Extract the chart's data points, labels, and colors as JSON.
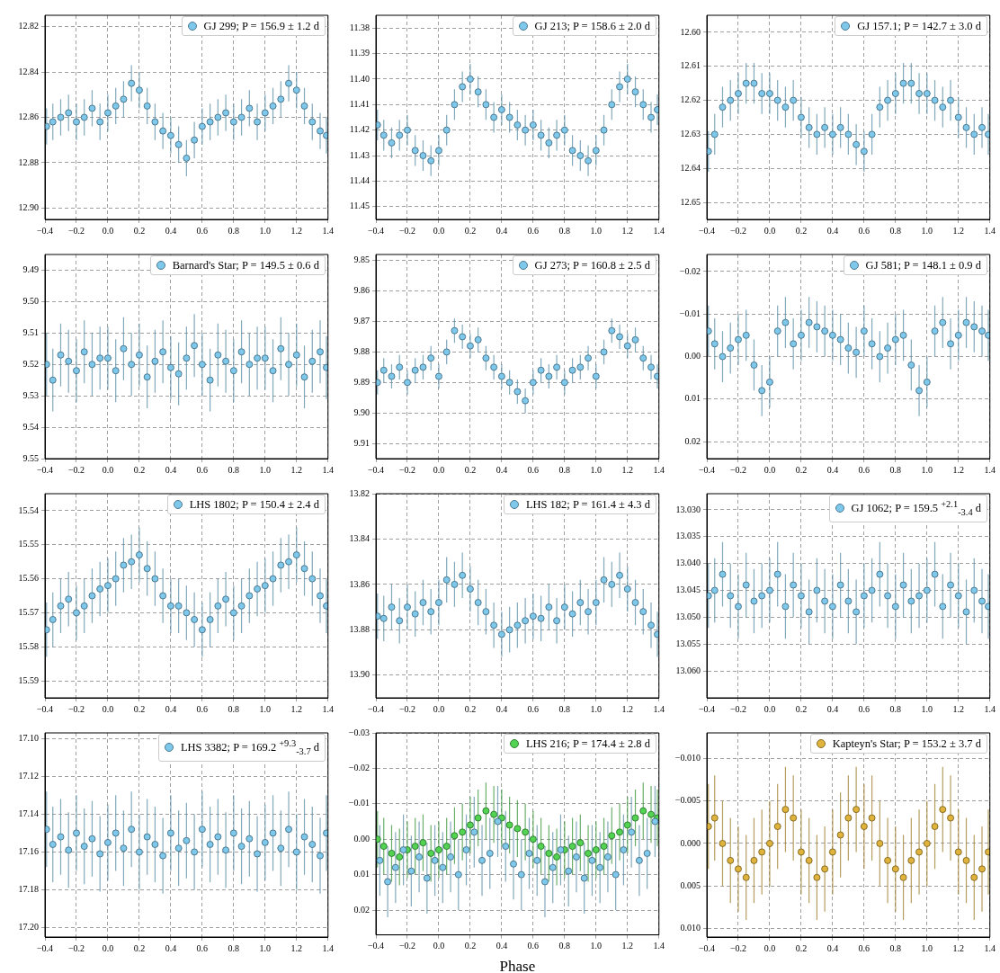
{
  "chart_data": [
    {
      "type": "scatter",
      "x": [
        -0.39,
        -0.35,
        -0.3,
        -0.25,
        -0.2,
        -0.15,
        -0.1,
        -0.05,
        0,
        0.05,
        0.1,
        0.15,
        0.2,
        0.25,
        0.3,
        0.35,
        0.4,
        0.45,
        0.5,
        0.55,
        0.6,
        0.65,
        0.7,
        0.75,
        0.8,
        0.85,
        0.9,
        0.95,
        1,
        1.05,
        1.1,
        1.15,
        1.2,
        1.25,
        1.3,
        1.35,
        1.39
      ],
      "xlim": [
        -0.4,
        1.4
      ],
      "xticks": [
        {
          "value": -0.4,
          "label": "−0.4"
        },
        {
          "value": -0.2,
          "label": "−0.2"
        },
        {
          "value": 0,
          "label": "0.0"
        },
        0.2,
        0.4,
        0.6,
        0.8,
        {
          "value": 1,
          "label": "1.0"
        },
        1.2,
        1.4
      ],
      "ylim": [
        12.905,
        12.815
      ],
      "yticks": [
        12.82,
        12.84,
        12.86,
        12.88,
        {
          "value": 12.9,
          "label": "12.90"
        }
      ],
      "grid": true,
      "legend": "top right",
      "marker": "circle",
      "series": [
        {
          "name": "GJ 299; P = 156.9 ± 1.2 d",
          "color": "#7ec8ec",
          "values": [
            12.864,
            12.862,
            12.86,
            12.858,
            12.862,
            12.86,
            12.856,
            12.862,
            12.858,
            12.855,
            12.852,
            12.845,
            12.848,
            12.855,
            12.862,
            12.866,
            12.868,
            12.872,
            12.878,
            12.87,
            12.864,
            12.862,
            12.86,
            12.858,
            12.862,
            12.86,
            12.856,
            12.862,
            12.858,
            12.855,
            12.852,
            12.845,
            12.848,
            12.855,
            12.862,
            12.866,
            12.868
          ],
          "errors": [
            0.008,
            0.008,
            0.008,
            0.008,
            0.008,
            0.008,
            0.008,
            0.008,
            0.008,
            0.008,
            0.008,
            0.008,
            0.008,
            0.008,
            0.008,
            0.008,
            0.008,
            0.008,
            0.008,
            0.008,
            0.008,
            0.008,
            0.008,
            0.008,
            0.008,
            0.008,
            0.008,
            0.008,
            0.008,
            0.008,
            0.008,
            0.008,
            0.008,
            0.008,
            0.008,
            0.008,
            0.008
          ]
        }
      ]
    },
    {
      "type": "scatter",
      "x": [
        -0.39,
        -0.35,
        -0.3,
        -0.25,
        -0.2,
        -0.15,
        -0.1,
        -0.05,
        0,
        0.05,
        0.1,
        0.15,
        0.2,
        0.25,
        0.3,
        0.35,
        0.4,
        0.45,
        0.5,
        0.55,
        0.6,
        0.65,
        0.7,
        0.75,
        0.8,
        0.85,
        0.9,
        0.95,
        1,
        1.05,
        1.1,
        1.15,
        1.2,
        1.25,
        1.3,
        1.35,
        1.39
      ],
      "xlim": [
        -0.4,
        1.4
      ],
      "xticks": [
        {
          "value": -0.4,
          "label": "−0.4"
        },
        {
          "value": -0.2,
          "label": "−0.2"
        },
        {
          "value": 0,
          "label": "0.0"
        },
        0.2,
        0.4,
        0.6,
        0.8,
        {
          "value": 1,
          "label": "1.0"
        },
        1.2,
        1.4
      ],
      "ylim": [
        11.455,
        11.375
      ],
      "yticks": [
        11.38,
        11.39,
        {
          "value": 11.4,
          "label": "11.40"
        },
        11.41,
        11.42,
        11.43,
        11.44,
        11.45
      ],
      "grid": true,
      "legend": "top right",
      "marker": "circle",
      "series": [
        {
          "name": "GJ 213; P = 158.6 ± 2.0 d",
          "color": "#7ec8ec",
          "values": [
            11.418,
            11.422,
            11.425,
            11.422,
            11.42,
            11.428,
            11.43,
            11.432,
            11.428,
            11.42,
            11.41,
            11.403,
            11.4,
            11.405,
            11.41,
            11.415,
            11.412,
            11.415,
            11.418,
            11.42,
            11.418,
            11.422,
            11.425,
            11.422,
            11.42,
            11.428,
            11.43,
            11.432,
            11.428,
            11.42,
            11.41,
            11.403,
            11.4,
            11.405,
            11.41,
            11.415,
            11.412
          ],
          "errors": [
            0.006,
            0.006,
            0.006,
            0.006,
            0.006,
            0.006,
            0.006,
            0.006,
            0.006,
            0.006,
            0.006,
            0.006,
            0.006,
            0.006,
            0.006,
            0.006,
            0.006,
            0.006,
            0.006,
            0.006,
            0.006,
            0.006,
            0.006,
            0.006,
            0.006,
            0.006,
            0.006,
            0.006,
            0.006,
            0.006,
            0.006,
            0.006,
            0.006,
            0.006,
            0.006,
            0.006,
            0.006
          ]
        }
      ]
    },
    {
      "type": "scatter",
      "x": [
        -0.39,
        -0.35,
        -0.3,
        -0.25,
        -0.2,
        -0.15,
        -0.1,
        -0.05,
        0,
        0.05,
        0.1,
        0.15,
        0.2,
        0.25,
        0.3,
        0.35,
        0.4,
        0.45,
        0.5,
        0.55,
        0.6,
        0.65,
        0.7,
        0.75,
        0.8,
        0.85,
        0.9,
        0.95,
        1,
        1.05,
        1.1,
        1.15,
        1.2,
        1.25,
        1.3,
        1.35,
        1.39
      ],
      "xlim": [
        -0.4,
        1.4
      ],
      "xticks": [
        {
          "value": -0.4,
          "label": "−0.4"
        },
        {
          "value": -0.2,
          "label": "−0.2"
        },
        {
          "value": 0,
          "label": "0.0"
        },
        0.2,
        0.4,
        0.6,
        0.8,
        {
          "value": 1,
          "label": "1.0"
        },
        1.2,
        1.4
      ],
      "ylim": [
        12.655,
        12.595
      ],
      "yticks": [
        {
          "value": 12.6,
          "label": "12.60"
        },
        12.61,
        12.62,
        12.63,
        12.64,
        12.65
      ],
      "grid": true,
      "legend": "top right",
      "marker": "circle",
      "series": [
        {
          "name": "GJ 157.1; P = 142.7 ± 3.0 d",
          "color": "#7ec8ec",
          "values": [
            12.635,
            12.63,
            12.622,
            12.62,
            12.618,
            12.615,
            12.615,
            12.618,
            12.618,
            12.62,
            12.622,
            12.62,
            12.625,
            12.628,
            12.63,
            12.628,
            12.63,
            12.628,
            12.63,
            12.633,
            12.635,
            12.63,
            12.622,
            12.62,
            12.618,
            12.615,
            12.615,
            12.618,
            12.618,
            12.62,
            12.622,
            12.62,
            12.625,
            12.628,
            12.63,
            12.628,
            12.63
          ],
          "errors": [
            0.006,
            0.006,
            0.006,
            0.006,
            0.006,
            0.006,
            0.006,
            0.006,
            0.006,
            0.006,
            0.006,
            0.006,
            0.006,
            0.006,
            0.006,
            0.006,
            0.006,
            0.006,
            0.006,
            0.006,
            0.006,
            0.006,
            0.006,
            0.006,
            0.006,
            0.006,
            0.006,
            0.006,
            0.006,
            0.006,
            0.006,
            0.006,
            0.006,
            0.006,
            0.006,
            0.006,
            0.006
          ]
        }
      ]
    },
    {
      "type": "scatter",
      "x": [
        -0.39,
        -0.35,
        -0.3,
        -0.25,
        -0.2,
        -0.15,
        -0.1,
        -0.05,
        0,
        0.05,
        0.1,
        0.15,
        0.2,
        0.25,
        0.3,
        0.35,
        0.4,
        0.45,
        0.5,
        0.55,
        0.6,
        0.65,
        0.7,
        0.75,
        0.8,
        0.85,
        0.9,
        0.95,
        1,
        1.05,
        1.1,
        1.15,
        1.2,
        1.25,
        1.3,
        1.35,
        1.39
      ],
      "xlim": [
        -0.4,
        1.4
      ],
      "xticks": [
        {
          "value": -0.4,
          "label": "−0.4"
        },
        {
          "value": -0.2,
          "label": "−0.2"
        },
        {
          "value": 0,
          "label": "0.0"
        },
        0.2,
        0.4,
        0.6,
        0.8,
        {
          "value": 1,
          "label": "1.0"
        },
        1.2,
        1.4
      ],
      "ylim": [
        9.55,
        9.485
      ],
      "yticks": [
        9.49,
        {
          "value": 9.5,
          "label": "9.50"
        },
        9.51,
        9.52,
        9.53,
        9.54,
        9.55
      ],
      "grid": true,
      "legend": "top right",
      "marker": "circle",
      "series": [
        {
          "name": "Barnard's Star; P = 149.5 ± 0.6 d",
          "color": "#7ec8ec",
          "values": [
            9.52,
            9.525,
            9.517,
            9.519,
            9.522,
            9.516,
            9.52,
            9.518,
            9.518,
            9.522,
            9.515,
            9.52,
            9.517,
            9.524,
            9.519,
            9.516,
            9.521,
            9.523,
            9.518,
            9.514,
            9.52,
            9.525,
            9.517,
            9.519,
            9.522,
            9.516,
            9.52,
            9.518,
            9.518,
            9.522,
            9.515,
            9.52,
            9.517,
            9.524,
            9.519,
            9.516,
            9.521
          ],
          "errors": [
            0.01,
            0.01,
            0.01,
            0.01,
            0.01,
            0.01,
            0.01,
            0.01,
            0.01,
            0.01,
            0.01,
            0.01,
            0.01,
            0.01,
            0.01,
            0.01,
            0.01,
            0.01,
            0.01,
            0.01,
            0.01,
            0.01,
            0.01,
            0.01,
            0.01,
            0.01,
            0.01,
            0.01,
            0.01,
            0.01,
            0.01,
            0.01,
            0.01,
            0.01,
            0.01,
            0.01,
            0.01
          ]
        }
      ]
    },
    {
      "type": "scatter",
      "x": [
        -0.39,
        -0.35,
        -0.3,
        -0.25,
        -0.2,
        -0.15,
        -0.1,
        -0.05,
        0,
        0.05,
        0.1,
        0.15,
        0.2,
        0.25,
        0.3,
        0.35,
        0.4,
        0.45,
        0.5,
        0.55,
        0.6,
        0.65,
        0.7,
        0.75,
        0.8,
        0.85,
        0.9,
        0.95,
        1,
        1.05,
        1.1,
        1.15,
        1.2,
        1.25,
        1.3,
        1.35,
        1.39
      ],
      "xlim": [
        -0.4,
        1.4
      ],
      "xticks": [
        {
          "value": -0.4,
          "label": "−0.4"
        },
        {
          "value": -0.2,
          "label": "−0.2"
        },
        {
          "value": 0,
          "label": "0.0"
        },
        0.2,
        0.4,
        0.6,
        0.8,
        {
          "value": 1,
          "label": "1.0"
        },
        1.2,
        1.4
      ],
      "ylim": [
        9.915,
        9.848
      ],
      "yticks": [
        9.85,
        9.86,
        9.87,
        9.88,
        9.89,
        {
          "value": 9.9,
          "label": "9.90"
        },
        9.91
      ],
      "grid": true,
      "legend": "top right",
      "marker": "circle",
      "series": [
        {
          "name": "GJ 273; P = 160.8 ± 2.5 d",
          "color": "#7ec8ec",
          "values": [
            9.89,
            9.886,
            9.888,
            9.885,
            9.89,
            9.886,
            9.885,
            9.882,
            9.888,
            9.88,
            9.873,
            9.875,
            9.878,
            9.876,
            9.882,
            9.885,
            9.888,
            9.89,
            9.893,
            9.896,
            9.89,
            9.886,
            9.888,
            9.885,
            9.89,
            9.886,
            9.885,
            9.882,
            9.888,
            9.88,
            9.873,
            9.875,
            9.878,
            9.876,
            9.882,
            9.885,
            9.888
          ],
          "errors": [
            0.004,
            0.004,
            0.004,
            0.004,
            0.004,
            0.004,
            0.004,
            0.004,
            0.004,
            0.004,
            0.004,
            0.004,
            0.004,
            0.004,
            0.004,
            0.004,
            0.004,
            0.004,
            0.004,
            0.004,
            0.004,
            0.004,
            0.004,
            0.004,
            0.004,
            0.004,
            0.004,
            0.004,
            0.004,
            0.004,
            0.004,
            0.004,
            0.004,
            0.004,
            0.004,
            0.004,
            0.004
          ]
        }
      ]
    },
    {
      "type": "scatter",
      "x": [
        -0.39,
        -0.35,
        -0.3,
        -0.25,
        -0.2,
        -0.15,
        -0.1,
        -0.05,
        0,
        0.05,
        0.1,
        0.15,
        0.2,
        0.25,
        0.3,
        0.35,
        0.4,
        0.45,
        0.5,
        0.55,
        0.6,
        0.65,
        0.7,
        0.75,
        0.8,
        0.85,
        0.9,
        0.95,
        1,
        1.05,
        1.1,
        1.15,
        1.2,
        1.25,
        1.3,
        1.35,
        1.39
      ],
      "xlim": [
        -0.4,
        1.4
      ],
      "xticks": [
        {
          "value": -0.4,
          "label": "−0.4"
        },
        {
          "value": -0.2,
          "label": "−0.2"
        },
        {
          "value": 0,
          "label": "0.0"
        },
        0.2,
        0.4,
        0.6,
        0.8,
        {
          "value": 1,
          "label": "1.0"
        },
        1.2,
        1.4
      ],
      "ylim": [
        0.024,
        -0.024
      ],
      "yticks": [
        {
          "value": -0.02,
          "label": "−0.02"
        },
        {
          "value": -0.01,
          "label": "−0.01"
        },
        {
          "value": 0,
          "label": "0.00"
        },
        0.01,
        0.02
      ],
      "grid": true,
      "legend": "top right",
      "marker": "circle",
      "series": [
        {
          "name": "GJ 581; P = 148.1 ± 0.9 d",
          "color": "#7ec8ec",
          "values": [
            -0.006,
            -0.003,
            0.0,
            -0.002,
            -0.004,
            -0.005,
            0.002,
            0.008,
            0.006,
            -0.006,
            -0.008,
            -0.003,
            -0.005,
            -0.008,
            -0.007,
            -0.006,
            -0.005,
            -0.004,
            -0.002,
            -0.001,
            -0.006,
            -0.003,
            0.0,
            -0.002,
            -0.004,
            -0.005,
            0.002,
            0.008,
            0.006,
            -0.006,
            -0.008,
            -0.003,
            -0.005,
            -0.008,
            -0.007,
            -0.006,
            -0.005
          ],
          "errors": [
            0.006,
            0.006,
            0.006,
            0.006,
            0.006,
            0.006,
            0.006,
            0.006,
            0.006,
            0.006,
            0.006,
            0.006,
            0.006,
            0.006,
            0.006,
            0.006,
            0.006,
            0.006,
            0.006,
            0.006,
            0.006,
            0.006,
            0.006,
            0.006,
            0.006,
            0.006,
            0.006,
            0.006,
            0.006,
            0.006,
            0.006,
            0.006,
            0.006,
            0.006,
            0.006,
            0.006,
            0.006
          ]
        }
      ]
    },
    {
      "type": "scatter",
      "x": [
        -0.39,
        -0.35,
        -0.3,
        -0.25,
        -0.2,
        -0.15,
        -0.1,
        -0.05,
        0,
        0.05,
        0.1,
        0.15,
        0.2,
        0.25,
        0.3,
        0.35,
        0.4,
        0.45,
        0.5,
        0.55,
        0.6,
        0.65,
        0.7,
        0.75,
        0.8,
        0.85,
        0.9,
        0.95,
        1,
        1.05,
        1.1,
        1.15,
        1.2,
        1.25,
        1.3,
        1.35,
        1.39
      ],
      "xlim": [
        -0.4,
        1.4
      ],
      "xticks": [
        {
          "value": -0.4,
          "label": "−0.4"
        },
        {
          "value": -0.2,
          "label": "−0.2"
        },
        {
          "value": 0,
          "label": "0.0"
        },
        0.2,
        0.4,
        0.6,
        0.8,
        {
          "value": 1,
          "label": "1.0"
        },
        1.2,
        1.4
      ],
      "ylim": [
        15.595,
        15.535
      ],
      "yticks": [
        15.54,
        15.55,
        15.56,
        15.57,
        15.58,
        15.59
      ],
      "grid": true,
      "legend": "top right",
      "marker": "circle",
      "series": [
        {
          "name": "LHS 1802; P = 150.4 ± 2.4 d",
          "color": "#7ec8ec",
          "values": [
            15.575,
            15.572,
            15.568,
            15.566,
            15.57,
            15.568,
            15.565,
            15.563,
            15.562,
            15.56,
            15.556,
            15.555,
            15.553,
            15.557,
            15.56,
            15.565,
            15.568,
            15.568,
            15.57,
            15.572,
            15.575,
            15.572,
            15.568,
            15.566,
            15.57,
            15.568,
            15.565,
            15.563,
            15.562,
            15.56,
            15.556,
            15.555,
            15.553,
            15.557,
            15.56,
            15.565,
            15.568
          ],
          "errors": [
            0.008,
            0.008,
            0.008,
            0.008,
            0.008,
            0.008,
            0.008,
            0.008,
            0.008,
            0.008,
            0.008,
            0.008,
            0.008,
            0.008,
            0.008,
            0.008,
            0.008,
            0.008,
            0.008,
            0.008,
            0.008,
            0.008,
            0.008,
            0.008,
            0.008,
            0.008,
            0.008,
            0.008,
            0.008,
            0.008,
            0.008,
            0.008,
            0.008,
            0.008,
            0.008,
            0.008,
            0.008
          ]
        }
      ]
    },
    {
      "type": "scatter",
      "x": [
        -0.39,
        -0.35,
        -0.3,
        -0.25,
        -0.2,
        -0.15,
        -0.1,
        -0.05,
        0,
        0.05,
        0.1,
        0.15,
        0.2,
        0.25,
        0.3,
        0.35,
        0.4,
        0.45,
        0.5,
        0.55,
        0.6,
        0.65,
        0.7,
        0.75,
        0.8,
        0.85,
        0.9,
        0.95,
        1,
        1.05,
        1.1,
        1.15,
        1.2,
        1.25,
        1.3,
        1.35,
        1.39
      ],
      "xlim": [
        -0.4,
        1.4
      ],
      "xticks": [
        {
          "value": -0.4,
          "label": "−0.4"
        },
        {
          "value": -0.2,
          "label": "−0.2"
        },
        {
          "value": 0,
          "label": "0.0"
        },
        0.2,
        0.4,
        0.6,
        0.8,
        {
          "value": 1,
          "label": "1.0"
        },
        1.2,
        1.4
      ],
      "ylim": [
        13.91,
        13.82
      ],
      "yticks": [
        13.82,
        13.84,
        13.86,
        13.88,
        {
          "value": 13.9,
          "label": "13.90"
        }
      ],
      "grid": true,
      "legend": "top right",
      "marker": "circle",
      "series": [
        {
          "name": "LHS 182; P = 161.4 ± 4.3 d",
          "color": "#7ec8ec",
          "values": [
            13.874,
            13.875,
            13.87,
            13.876,
            13.87,
            13.873,
            13.868,
            13.872,
            13.868,
            13.858,
            13.86,
            13.856,
            13.862,
            13.868,
            13.872,
            13.878,
            13.882,
            13.88,
            13.878,
            13.876,
            13.874,
            13.875,
            13.87,
            13.876,
            13.87,
            13.873,
            13.868,
            13.872,
            13.868,
            13.858,
            13.86,
            13.856,
            13.862,
            13.868,
            13.872,
            13.878,
            13.882
          ],
          "errors": [
            0.01,
            0.01,
            0.01,
            0.01,
            0.01,
            0.01,
            0.01,
            0.01,
            0.01,
            0.01,
            0.01,
            0.01,
            0.01,
            0.01,
            0.01,
            0.01,
            0.01,
            0.01,
            0.01,
            0.01,
            0.01,
            0.01,
            0.01,
            0.01,
            0.01,
            0.01,
            0.01,
            0.01,
            0.01,
            0.01,
            0.01,
            0.01,
            0.01,
            0.01,
            0.01,
            0.01,
            0.01
          ]
        }
      ]
    },
    {
      "type": "scatter",
      "x": [
        -0.39,
        -0.35,
        -0.3,
        -0.25,
        -0.2,
        -0.15,
        -0.1,
        -0.05,
        0,
        0.05,
        0.1,
        0.15,
        0.2,
        0.25,
        0.3,
        0.35,
        0.4,
        0.45,
        0.5,
        0.55,
        0.6,
        0.65,
        0.7,
        0.75,
        0.8,
        0.85,
        0.9,
        0.95,
        1,
        1.05,
        1.1,
        1.15,
        1.2,
        1.25,
        1.3,
        1.35,
        1.39
      ],
      "xlim": [
        -0.4,
        1.4
      ],
      "xticks": [
        {
          "value": -0.4,
          "label": "−0.4"
        },
        {
          "value": -0.2,
          "label": "−0.2"
        },
        {
          "value": 0,
          "label": "0.0"
        },
        0.2,
        0.4,
        0.6,
        0.8,
        {
          "value": 1,
          "label": "1.0"
        },
        1.2,
        1.4
      ],
      "ylim": [
        13.065,
        13.027
      ],
      "yticks": [
        {
          "value": 13.03,
          "label": "13.030"
        },
        13.035,
        {
          "value": 13.04,
          "label": "13.040"
        },
        13.045,
        {
          "value": 13.05,
          "label": "13.050"
        },
        13.055,
        {
          "value": 13.06,
          "label": "13.060"
        }
      ],
      "grid": true,
      "legend": "top right",
      "marker": "circle",
      "series": [
        {
          "name": "GJ 1062; P = 159.5 $^{+2.1}$$_{-3.4}$ d",
          "color": "#7ec8ec",
          "values": [
            13.046,
            13.045,
            13.042,
            13.046,
            13.048,
            13.044,
            13.047,
            13.046,
            13.045,
            13.042,
            13.048,
            13.044,
            13.046,
            13.049,
            13.045,
            13.047,
            13.048,
            13.044,
            13.047,
            13.049,
            13.046,
            13.045,
            13.042,
            13.046,
            13.048,
            13.044,
            13.047,
            13.046,
            13.045,
            13.042,
            13.048,
            13.044,
            13.046,
            13.049,
            13.045,
            13.047,
            13.048
          ],
          "errors": [
            0.006,
            0.006,
            0.006,
            0.006,
            0.006,
            0.006,
            0.006,
            0.006,
            0.006,
            0.006,
            0.006,
            0.006,
            0.006,
            0.006,
            0.006,
            0.006,
            0.006,
            0.006,
            0.006,
            0.006,
            0.006,
            0.006,
            0.006,
            0.006,
            0.006,
            0.006,
            0.006,
            0.006,
            0.006,
            0.006,
            0.006,
            0.006,
            0.006,
            0.006,
            0.006,
            0.006,
            0.006
          ]
        }
      ]
    },
    {
      "type": "scatter",
      "x": [
        -0.39,
        -0.35,
        -0.3,
        -0.25,
        -0.2,
        -0.15,
        -0.1,
        -0.05,
        0,
        0.05,
        0.1,
        0.15,
        0.2,
        0.25,
        0.3,
        0.35,
        0.4,
        0.45,
        0.5,
        0.55,
        0.6,
        0.65,
        0.7,
        0.75,
        0.8,
        0.85,
        0.9,
        0.95,
        1,
        1.05,
        1.1,
        1.15,
        1.2,
        1.25,
        1.3,
        1.35,
        1.39
      ],
      "xlim": [
        -0.4,
        1.4
      ],
      "xticks": [
        {
          "value": -0.4,
          "label": "−0.4"
        },
        {
          "value": -0.2,
          "label": "−0.2"
        },
        {
          "value": 0,
          "label": "0.0"
        },
        0.2,
        0.4,
        0.6,
        0.8,
        {
          "value": 1,
          "label": "1.0"
        },
        1.2,
        1.4
      ],
      "ylim": [
        17.205,
        17.097
      ],
      "yticks": [
        {
          "value": 17.1,
          "label": "17.10"
        },
        17.12,
        17.14,
        17.16,
        17.18,
        {
          "value": 17.2,
          "label": "17.20"
        }
      ],
      "grid": true,
      "legend": "top right",
      "marker": "circle",
      "series": [
        {
          "name": "LHS 3382; P = 169.2 $^{+9.3}$$_{-3.7}$ d",
          "color": "#7ec8ec",
          "values": [
            17.148,
            17.156,
            17.152,
            17.159,
            17.15,
            17.157,
            17.153,
            17.161,
            17.155,
            17.15,
            17.158,
            17.148,
            17.16,
            17.152,
            17.156,
            17.162,
            17.15,
            17.158,
            17.154,
            17.16,
            17.148,
            17.156,
            17.152,
            17.159,
            17.15,
            17.157,
            17.153,
            17.161,
            17.155,
            17.15,
            17.158,
            17.148,
            17.16,
            17.152,
            17.156,
            17.162,
            17.15
          ],
          "errors": [
            0.02,
            0.02,
            0.02,
            0.02,
            0.02,
            0.02,
            0.02,
            0.02,
            0.02,
            0.02,
            0.02,
            0.02,
            0.02,
            0.02,
            0.02,
            0.02,
            0.02,
            0.02,
            0.02,
            0.02,
            0.02,
            0.02,
            0.02,
            0.02,
            0.02,
            0.02,
            0.02,
            0.02,
            0.02,
            0.02,
            0.02,
            0.02,
            0.02,
            0.02,
            0.02,
            0.02,
            0.02
          ]
        }
      ]
    },
    {
      "type": "scatter",
      "xlabel": "Phase",
      "x": [
        -0.39,
        -0.35,
        -0.3,
        -0.25,
        -0.2,
        -0.15,
        -0.1,
        -0.05,
        0,
        0.05,
        0.1,
        0.15,
        0.2,
        0.25,
        0.3,
        0.35,
        0.4,
        0.45,
        0.5,
        0.55,
        0.6,
        0.65,
        0.7,
        0.75,
        0.8,
        0.85,
        0.9,
        0.95,
        1,
        1.05,
        1.1,
        1.15,
        1.2,
        1.25,
        1.3,
        1.35,
        1.39
      ],
      "xlim": [
        -0.4,
        1.4
      ],
      "xticks": [
        {
          "value": -0.4,
          "label": "−0.4"
        },
        {
          "value": -0.2,
          "label": "−0.2"
        },
        {
          "value": 0,
          "label": "0.0"
        },
        0.2,
        0.4,
        0.6,
        0.8,
        {
          "value": 1,
          "label": "1.0"
        },
        1.2,
        1.4
      ],
      "ylim": [
        0.027,
        -0.03
      ],
      "yticks": [
        {
          "value": -0.03,
          "label": "−0.03"
        },
        {
          "value": -0.02,
          "label": "−0.02"
        },
        {
          "value": -0.01,
          "label": "−0.01"
        },
        {
          "value": 0,
          "label": "0.00"
        },
        0.01,
        0.02
      ],
      "grid": true,
      "legend": "top right",
      "marker": "circle",
      "series": [
        {
          "color": "#7ec8ec",
          "x": [
            -0.375,
            -0.325,
            -0.275,
            -0.225,
            -0.175,
            -0.125,
            -0.075,
            -0.025,
            0.025,
            0.075,
            0.125,
            0.175,
            0.225,
            0.275,
            0.325,
            0.375,
            0.425,
            0.475,
            0.525,
            0.575,
            0.625,
            0.675,
            0.725,
            0.775,
            0.825,
            0.875,
            0.925,
            0.975,
            1.025,
            1.075,
            1.125,
            1.175,
            1.225,
            1.275,
            1.325,
            1.375
          ],
          "values": [
            0.006,
            0.012,
            0.008,
            0.003,
            0.009,
            0.005,
            0.011,
            0.006,
            0.008,
            0.005,
            0.01,
            0.003,
            -0.002,
            0.006,
            0.004,
            -0.005,
            0.002,
            0.007,
            0.01,
            0.004,
            0.006,
            0.012,
            0.008,
            0.003,
            0.009,
            0.005,
            0.011,
            0.006,
            0.008,
            0.005,
            0.01,
            0.003,
            -0.002,
            0.006,
            0.004,
            -0.005
          ],
          "errors": [
            0.01,
            0.01,
            0.01,
            0.01,
            0.01,
            0.01,
            0.01,
            0.01,
            0.01,
            0.01,
            0.01,
            0.01,
            0.01,
            0.01,
            0.01,
            0.01,
            0.01,
            0.01,
            0.01,
            0.01,
            0.01,
            0.01,
            0.01,
            0.01,
            0.01,
            0.01,
            0.01,
            0.01,
            0.01,
            0.01,
            0.01,
            0.01,
            0.01,
            0.01,
            0.01,
            0.01
          ]
        },
        {
          "name": "LHS 216; P = 174.4 ± 2.8 d",
          "color": "#52d452",
          "values": [
            0.0,
            0.002,
            0.004,
            0.005,
            0.003,
            0.002,
            0.001,
            0.004,
            0.003,
            0.002,
            -0.001,
            -0.002,
            -0.004,
            -0.006,
            -0.008,
            -0.007,
            -0.006,
            -0.004,
            -0.003,
            -0.002,
            0.0,
            0.002,
            0.004,
            0.005,
            0.003,
            0.002,
            0.001,
            0.004,
            0.003,
            0.002,
            -0.001,
            -0.002,
            -0.004,
            -0.006,
            -0.008,
            -0.007,
            -0.006
          ],
          "errors": [
            0.008,
            0.008,
            0.008,
            0.008,
            0.008,
            0.008,
            0.008,
            0.008,
            0.008,
            0.008,
            0.008,
            0.008,
            0.008,
            0.008,
            0.008,
            0.008,
            0.008,
            0.008,
            0.008,
            0.008,
            0.008,
            0.008,
            0.008,
            0.008,
            0.008,
            0.008,
            0.008,
            0.008,
            0.008,
            0.008,
            0.008,
            0.008,
            0.008,
            0.008,
            0.008,
            0.008,
            0.008
          ]
        }
      ]
    },
    {
      "type": "scatter",
      "x": [
        -0.39,
        -0.35,
        -0.3,
        -0.25,
        -0.2,
        -0.15,
        -0.1,
        -0.05,
        0,
        0.05,
        0.1,
        0.15,
        0.2,
        0.25,
        0.3,
        0.35,
        0.4,
        0.45,
        0.5,
        0.55,
        0.6,
        0.65,
        0.7,
        0.75,
        0.8,
        0.85,
        0.9,
        0.95,
        1,
        1.05,
        1.1,
        1.15,
        1.2,
        1.25,
        1.3,
        1.35,
        1.39
      ],
      "xlim": [
        -0.4,
        1.4
      ],
      "xticks": [
        {
          "value": -0.4,
          "label": "−0.4"
        },
        {
          "value": -0.2,
          "label": "−0.2"
        },
        {
          "value": 0,
          "label": "0.0"
        },
        0.2,
        0.4,
        0.6,
        0.8,
        {
          "value": 1,
          "label": "1.0"
        },
        1.2,
        1.4
      ],
      "ylim": [
        0.011,
        -0.013
      ],
      "yticks": [
        {
          "value": -0.01,
          "label": "−0.010"
        },
        {
          "value": -0.005,
          "label": "−0.005"
        },
        {
          "value": 0,
          "label": "0.000"
        },
        0.005,
        {
          "value": 0.01,
          "label": "0.010"
        }
      ],
      "grid": true,
      "legend": "top right",
      "marker": "circle",
      "series": [
        {
          "name": "Kapteyn's Star; P = 153.2 ± 3.7 d",
          "color": "#e0b43c",
          "values": [
            -0.002,
            -0.003,
            0.0,
            0.002,
            0.003,
            0.004,
            0.002,
            0.001,
            0.0,
            -0.002,
            -0.004,
            -0.003,
            0.001,
            0.002,
            0.004,
            0.003,
            0.001,
            -0.001,
            -0.003,
            -0.004,
            -0.002,
            -0.003,
            0.0,
            0.002,
            0.003,
            0.004,
            0.002,
            0.001,
            0.0,
            -0.002,
            -0.004,
            -0.003,
            0.001,
            0.002,
            0.004,
            0.003,
            0.001
          ],
          "errors": [
            0.005,
            0.005,
            0.005,
            0.005,
            0.005,
            0.005,
            0.005,
            0.005,
            0.005,
            0.005,
            0.005,
            0.005,
            0.005,
            0.005,
            0.005,
            0.005,
            0.005,
            0.005,
            0.005,
            0.005,
            0.005,
            0.005,
            0.005,
            0.005,
            0.005,
            0.005,
            0.005,
            0.005,
            0.005,
            0.005,
            0.005,
            0.005,
            0.005,
            0.005,
            0.005,
            0.005,
            0.005
          ]
        }
      ]
    }
  ]
}
